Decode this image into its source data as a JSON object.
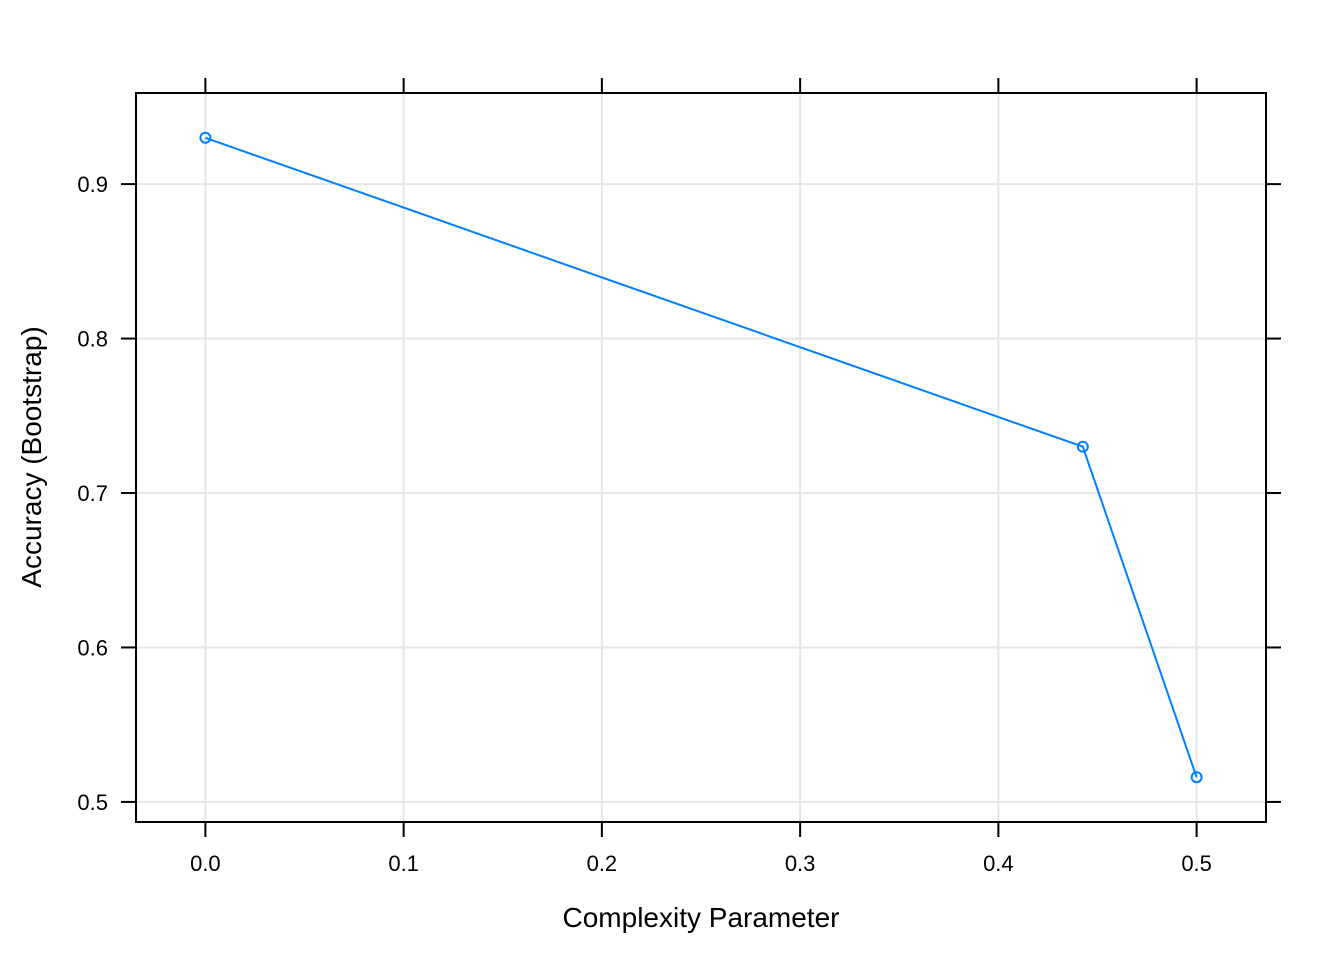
{
  "chart_data": {
    "type": "line",
    "title": "",
    "xlabel": "Complexity Parameter",
    "ylabel": "Accuracy (Bootstrap)",
    "xlim": [
      -0.035,
      0.535
    ],
    "ylim": [
      0.487,
      0.959
    ],
    "x_ticks": [
      0.0,
      0.1,
      0.2,
      0.3,
      0.4,
      0.5
    ],
    "x_tick_labels": [
      "0.0",
      "0.1",
      "0.2",
      "0.3",
      "0.4",
      "0.5"
    ],
    "y_ticks": [
      0.5,
      0.6,
      0.7,
      0.8,
      0.9
    ],
    "y_tick_labels": [
      "0.5",
      "0.6",
      "0.7",
      "0.8",
      "0.9"
    ],
    "grid": true,
    "legend": "none",
    "series": [
      {
        "color": "#0080ff",
        "marker": "open-circle",
        "x": [
          0.0,
          0.4426,
          0.5
        ],
        "y": [
          0.93,
          0.73,
          0.516
        ]
      }
    ],
    "colors": {
      "grid": "#e6e6e6",
      "frame": "#000000",
      "series": "#0080ff"
    }
  }
}
